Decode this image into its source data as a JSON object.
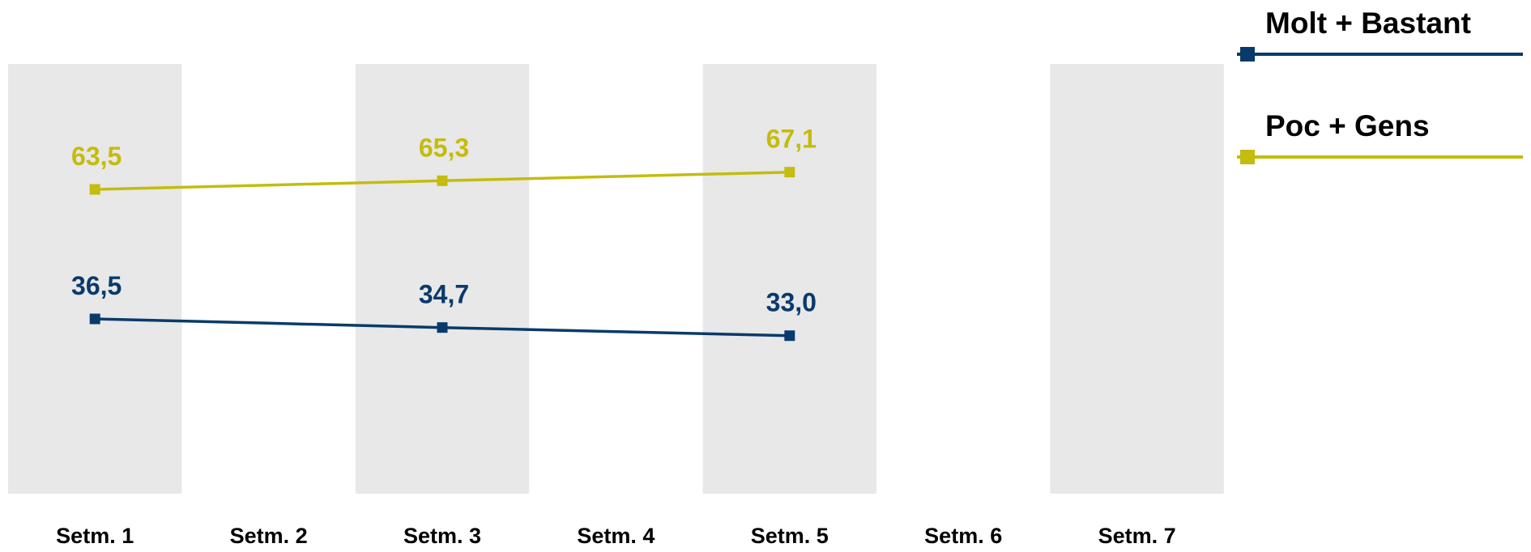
{
  "chart_data": {
    "type": "line",
    "title": "",
    "xlabel": "",
    "ylabel": "",
    "categories": [
      "Setm. 1",
      "Setm. 2",
      "Setm. 3",
      "Setm. 4",
      "Setm. 5",
      "Setm. 6",
      "Setm. 7"
    ],
    "ylim": [
      0,
      100
    ],
    "grid": false,
    "band_color": "#e8e8e8",
    "legend_position": "top-right",
    "series": [
      {
        "name": "Molt + Bastant",
        "color": "#0a3a6b",
        "marker": "square",
        "values": [
          36.5,
          35.6,
          34.7,
          33.85,
          33.0,
          null,
          null
        ],
        "labels": [
          "36,5",
          null,
          "34,7",
          null,
          "33,0",
          null,
          null
        ]
      },
      {
        "name": "Poc + Gens",
        "color": "#c4bc0e",
        "marker": "square",
        "values": [
          63.5,
          64.4,
          65.3,
          66.2,
          67.1,
          null,
          null
        ],
        "labels": [
          "63,5",
          null,
          "65,3",
          null,
          "67,1",
          null,
          null
        ]
      }
    ]
  }
}
